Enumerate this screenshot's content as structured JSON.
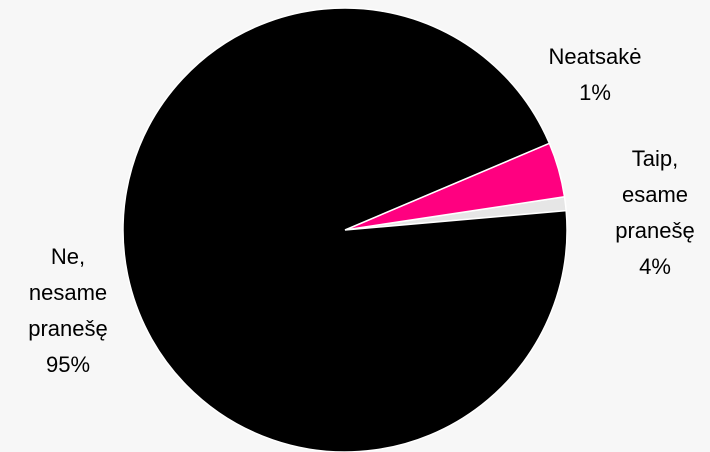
{
  "chart_data": {
    "type": "pie",
    "categories": [
      "Neatsakė",
      "Taip, esame pranešę",
      "Ne, nesame pranešę"
    ],
    "values": [
      1,
      4,
      95
    ],
    "value_labels": [
      "1%",
      "4%",
      "95%"
    ],
    "colors": [
      "#e6e6e6",
      "#ff0080",
      "#000000"
    ]
  }
}
